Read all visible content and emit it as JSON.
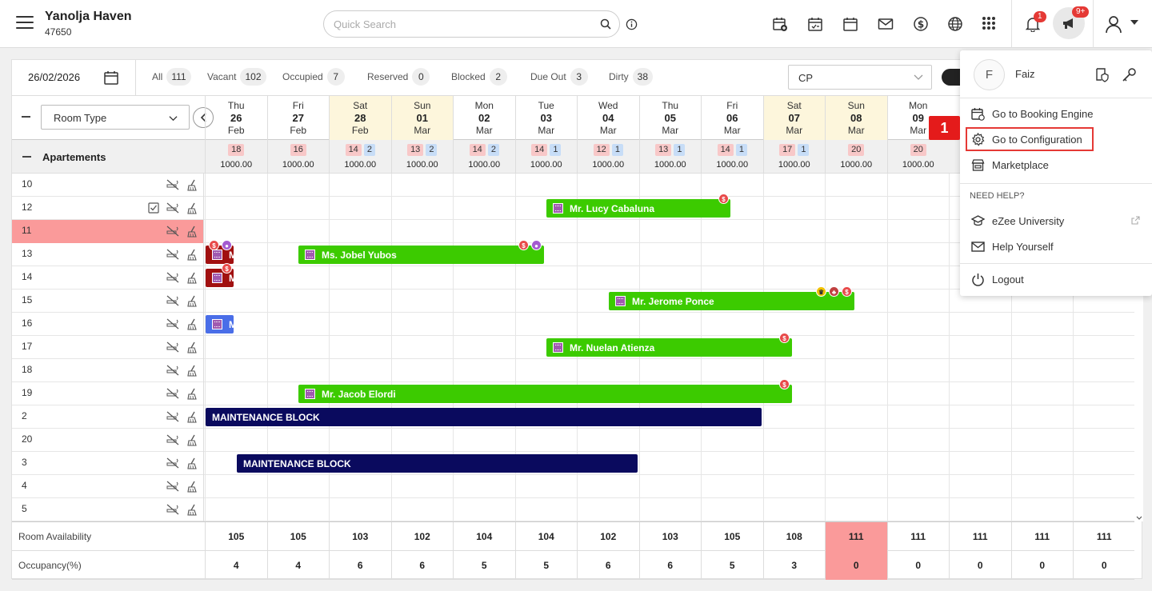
{
  "header": {
    "hotel_name": "Yanolja Haven",
    "hotel_id": "47650",
    "search_placeholder": "Quick Search",
    "notification_count": "1",
    "announcement_count": "9+"
  },
  "filters": {
    "date": "26/02/2026",
    "items": [
      {
        "label": "All",
        "count": "111"
      },
      {
        "label": "Vacant",
        "count": "102"
      },
      {
        "label": "Occupied",
        "count": "7"
      },
      {
        "label": "Reserved",
        "count": "0"
      },
      {
        "label": "Blocked",
        "count": "2"
      },
      {
        "label": "Due Out",
        "count": "3"
      },
      {
        "label": "Dirty",
        "count": "38"
      }
    ],
    "rate_plan": "CP"
  },
  "grid": {
    "room_type_select": "Room Type",
    "section_title": "Apartements",
    "dates": [
      {
        "dow": "Thu",
        "day": "26",
        "mon": "Feb",
        "weekend": false,
        "avail": "18",
        "blocked": "",
        "rate": "1000.00"
      },
      {
        "dow": "Fri",
        "day": "27",
        "mon": "Feb",
        "weekend": false,
        "avail": "16",
        "blocked": "",
        "rate": "1000.00"
      },
      {
        "dow": "Sat",
        "day": "28",
        "mon": "Feb",
        "weekend": true,
        "avail": "14",
        "blocked": "2",
        "rate": "1000.00"
      },
      {
        "dow": "Sun",
        "day": "01",
        "mon": "Mar",
        "weekend": true,
        "avail": "13",
        "blocked": "2",
        "rate": "1000.00"
      },
      {
        "dow": "Mon",
        "day": "02",
        "mon": "Mar",
        "weekend": false,
        "avail": "14",
        "blocked": "2",
        "rate": "1000.00"
      },
      {
        "dow": "Tue",
        "day": "03",
        "mon": "Mar",
        "weekend": false,
        "avail": "14",
        "blocked": "1",
        "rate": "1000.00"
      },
      {
        "dow": "Wed",
        "day": "04",
        "mon": "Mar",
        "weekend": false,
        "avail": "12",
        "blocked": "1",
        "rate": "1000.00"
      },
      {
        "dow": "Thu",
        "day": "05",
        "mon": "Mar",
        "weekend": false,
        "avail": "13",
        "blocked": "1",
        "rate": "1000.00"
      },
      {
        "dow": "Fri",
        "day": "06",
        "mon": "Mar",
        "weekend": false,
        "avail": "14",
        "blocked": "1",
        "rate": "1000.00"
      },
      {
        "dow": "Sat",
        "day": "07",
        "mon": "Mar",
        "weekend": true,
        "avail": "17",
        "blocked": "1",
        "rate": "1000.00"
      },
      {
        "dow": "Sun",
        "day": "08",
        "mon": "Mar",
        "weekend": true,
        "avail": "20",
        "blocked": "",
        "rate": "1000.00"
      },
      {
        "dow": "Mon",
        "day": "09",
        "mon": "Mar",
        "weekend": false,
        "avail": "20",
        "blocked": "",
        "rate": "1000.00"
      }
    ],
    "rooms": [
      {
        "num": "10",
        "highlight": false,
        "check": false
      },
      {
        "num": "12",
        "highlight": false,
        "check": true
      },
      {
        "num": "11",
        "highlight": true,
        "check": false
      },
      {
        "num": "13",
        "highlight": false,
        "check": false
      },
      {
        "num": "14",
        "highlight": false,
        "check": false
      },
      {
        "num": "15",
        "highlight": false,
        "check": false
      },
      {
        "num": "16",
        "highlight": false,
        "check": false
      },
      {
        "num": "17",
        "highlight": false,
        "check": false
      },
      {
        "num": "18",
        "highlight": false,
        "check": false
      },
      {
        "num": "19",
        "highlight": false,
        "check": false
      },
      {
        "num": "2",
        "highlight": false,
        "check": false
      },
      {
        "num": "20",
        "highlight": false,
        "check": false
      },
      {
        "num": "3",
        "highlight": false,
        "check": false
      },
      {
        "num": "4",
        "highlight": false,
        "check": false
      },
      {
        "num": "5",
        "highlight": false,
        "check": false
      }
    ],
    "bookings": [
      {
        "room": "12",
        "guest": "Mr. Lucy Cabaluna",
        "type": "guest"
      },
      {
        "room": "13",
        "guest": "M",
        "type": "guest"
      },
      {
        "room": "13",
        "guest": "Ms. Jobel Yubos",
        "type": "guest"
      },
      {
        "room": "14",
        "guest": "M",
        "type": "guest"
      },
      {
        "room": "15",
        "guest": "Mr. Jerome Ponce",
        "type": "guest"
      },
      {
        "room": "16",
        "guest": "M",
        "type": "guest"
      },
      {
        "room": "17",
        "guest": "Mr. Nuelan Atienza",
        "type": "guest"
      },
      {
        "room": "19",
        "guest": "Mr. Jacob Elordi",
        "type": "guest"
      },
      {
        "room": "2",
        "guest": "MAINTENANCE BLOCK",
        "type": "block"
      },
      {
        "room": "3",
        "guest": "MAINTENANCE BLOCK",
        "type": "block"
      }
    ],
    "footer": {
      "availability_label": "Room Availability",
      "availability": [
        "105",
        "105",
        "103",
        "102",
        "104",
        "104",
        "102",
        "103",
        "105",
        "108",
        "111",
        "111",
        "111",
        "111",
        "111"
      ],
      "occupancy_label": "Occupancy(%)",
      "occupancy": [
        "4",
        "4",
        "6",
        "6",
        "5",
        "5",
        "6",
        "6",
        "5",
        "3",
        "0",
        "0",
        "0",
        "0",
        "0"
      ]
    }
  },
  "user_menu": {
    "avatar_initial": "F",
    "user_name": "Faiz",
    "booking_engine": "Go to Booking Engine",
    "configuration": "Go to Configuration",
    "marketplace": "Marketplace",
    "need_help": "NEED HELP?",
    "university": "eZee University",
    "help_yourself": "Help Yourself",
    "logout": "Logout"
  },
  "annotation": {
    "step": "1"
  },
  "colors": {
    "booking_green": "#3ccb00",
    "block_navy": "#0a0a5e",
    "highlight_red": "#fa9a9a",
    "accent_red": "#e41b1b"
  }
}
